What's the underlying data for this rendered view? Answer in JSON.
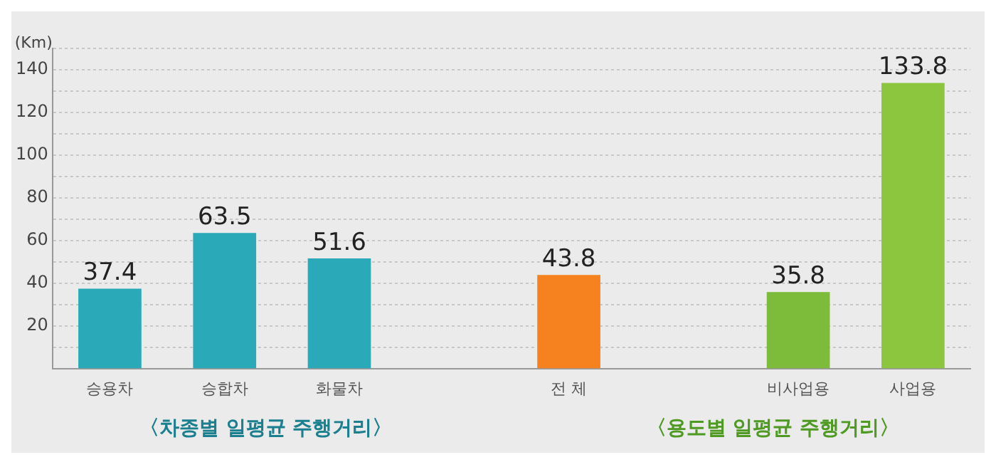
{
  "chart_data": {
    "type": "bar",
    "ylabel": "(Km)",
    "categories": [
      "승용차",
      "승합차",
      "화물차",
      null,
      "전 체",
      null,
      "비사업용",
      "사업용"
    ],
    "values": [
      37.4,
      63.5,
      51.6,
      null,
      43.8,
      null,
      35.8,
      133.8
    ],
    "colors": [
      "#2aaab8",
      "#2aaab8",
      "#2aaab8",
      "#2aaab8",
      "#f5821f",
      "#f5821f",
      "#7cbc3a",
      "#8cc63f"
    ],
    "ylim": [
      0,
      150
    ],
    "yticks": [
      {
        "value": 10,
        "label": null
      },
      20,
      {
        "value": 30,
        "label": null
      },
      40,
      {
        "value": 50,
        "label": null
      },
      60,
      {
        "value": 70,
        "label": null
      },
      80,
      {
        "value": 90,
        "label": null
      },
      100,
      {
        "value": 110,
        "label": null
      },
      120,
      {
        "value": 130,
        "label": null
      },
      140,
      {
        "value": 150,
        "label": null
      }
    ],
    "grid": "y",
    "legend": false,
    "data_labels": true,
    "annotations": [
      "〈차종별 일평균 주행거리〉",
      "〈용도별 일평균 주행거리〉"
    ]
  }
}
